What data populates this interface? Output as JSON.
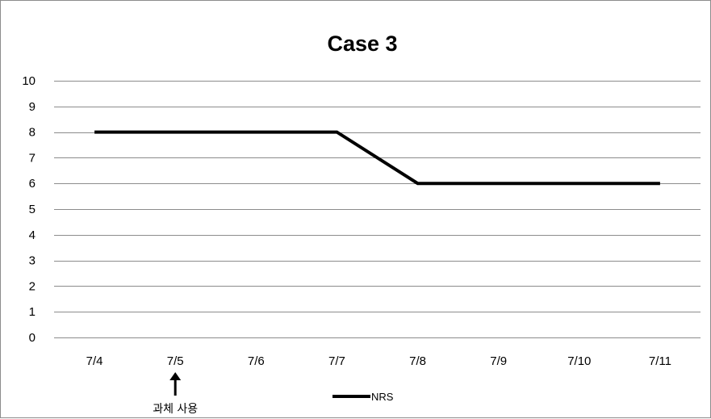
{
  "chart_data": {
    "type": "line",
    "title": "Case 3",
    "xlabel": "",
    "ylabel": "",
    "categories": [
      "7/4",
      "7/5",
      "7/6",
      "7/7",
      "7/8",
      "7/9",
      "7/10",
      "7/11"
    ],
    "series": [
      {
        "name": "NRS",
        "values": [
          8,
          8,
          8,
          8,
          6,
          6,
          6,
          6
        ],
        "color": "#000000"
      }
    ],
    "ylim": [
      0,
      10
    ],
    "yticks": [
      0,
      1,
      2,
      3,
      4,
      5,
      6,
      7,
      8,
      9,
      10
    ],
    "grid": true,
    "legend": "bottom",
    "annotations": [
      {
        "text": "과체 사용",
        "category": "7/5",
        "marker": "up-arrow"
      }
    ]
  }
}
